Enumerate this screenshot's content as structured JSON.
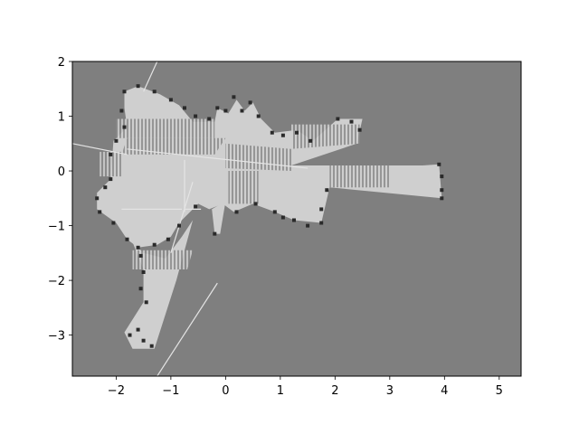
{
  "chart_data": {
    "type": "heatmap",
    "title": "",
    "xlabel": "",
    "ylabel": "",
    "xlim": [
      -2.8,
      5.4
    ],
    "ylim": [
      -3.75,
      2.0
    ],
    "x_ticks": [
      -2,
      -1,
      0,
      1,
      2,
      3,
      4,
      5
    ],
    "y_ticks": [
      -3,
      -2,
      -1,
      0,
      1,
      2
    ],
    "x_tick_labels": [
      "−2",
      "−1",
      "0",
      "1",
      "2",
      "3",
      "4",
      "5"
    ],
    "y_tick_labels": [
      "−3",
      "−2",
      "−1",
      "0",
      "1",
      "2"
    ],
    "grid": false,
    "colors": {
      "unknown": "#7f7f7f",
      "free": "#cfcfcf",
      "occupied": "#2a2a2a",
      "hatch_dark": "#7a7a7a",
      "spoke": "#e4e4e4"
    },
    "free_regions": [
      [
        [
          -1.85,
          1.45
        ],
        [
          -1.6,
          1.55
        ],
        [
          -1.2,
          1.4
        ],
        [
          -0.85,
          1.2
        ],
        [
          -0.6,
          0.9
        ],
        [
          -0.2,
          0.9
        ],
        [
          -0.15,
          1.15
        ],
        [
          0.05,
          1.05
        ],
        [
          0.2,
          1.3
        ],
        [
          0.35,
          1.1
        ],
        [
          0.5,
          1.25
        ],
        [
          0.65,
          0.95
        ],
        [
          0.9,
          0.7
        ],
        [
          1.3,
          0.75
        ],
        [
          1.6,
          0.55
        ],
        [
          2.05,
          0.95
        ],
        [
          2.5,
          0.95
        ],
        [
          2.4,
          0.5
        ],
        [
          1.2,
          0.1
        ],
        [
          3.6,
          0.1
        ],
        [
          3.9,
          0.12
        ],
        [
          3.95,
          -0.5
        ],
        [
          1.9,
          -0.3
        ],
        [
          1.75,
          -0.95
        ],
        [
          1.25,
          -0.9
        ],
        [
          0.9,
          -0.75
        ],
        [
          0.5,
          -0.6
        ],
        [
          0.15,
          -0.75
        ],
        [
          -0.05,
          -0.6
        ],
        [
          -0.3,
          -0.7
        ],
        [
          -0.5,
          -0.6
        ],
        [
          -0.85,
          -0.95
        ],
        [
          -1.0,
          -1.2
        ],
        [
          -1.25,
          -1.35
        ],
        [
          -1.6,
          -1.4
        ],
        [
          -1.8,
          -1.25
        ],
        [
          -2.0,
          -0.95
        ],
        [
          -2.35,
          -0.7
        ],
        [
          -2.35,
          -0.4
        ],
        [
          -2.1,
          -0.15
        ],
        [
          -2.05,
          0.55
        ],
        [
          -1.8,
          0.8
        ],
        [
          -1.85,
          1.15
        ]
      ],
      [
        [
          -1.7,
          -1.3
        ],
        [
          -1.5,
          -1.5
        ],
        [
          -1.1,
          -1.6
        ],
        [
          -0.8,
          -1.2
        ],
        [
          -0.6,
          -0.9
        ],
        [
          -0.9,
          -2.0
        ],
        [
          -1.3,
          -3.25
        ],
        [
          -1.7,
          -3.25
        ],
        [
          -1.85,
          -2.95
        ],
        [
          -1.5,
          -2.4
        ],
        [
          -1.5,
          -1.8
        ]
      ],
      [
        [
          -0.25,
          -0.7
        ],
        [
          0.0,
          -0.55
        ],
        [
          -0.1,
          -1.15
        ],
        [
          -0.2,
          -1.15
        ]
      ]
    ],
    "hatched_regions": [
      [
        [
          -2.0,
          0.95
        ],
        [
          -0.2,
          0.95
        ],
        [
          -0.2,
          0.6
        ],
        [
          -2.0,
          0.6
        ]
      ],
      [
        [
          -1.8,
          0.6
        ],
        [
          0.0,
          0.6
        ],
        [
          -0.2,
          0.3
        ],
        [
          -1.9,
          0.3
        ]
      ],
      [
        [
          0.0,
          0.5
        ],
        [
          1.2,
          0.4
        ],
        [
          1.2,
          0.0
        ],
        [
          0.0,
          0.05
        ]
      ],
      [
        [
          1.2,
          0.85
        ],
        [
          2.45,
          0.85
        ],
        [
          2.45,
          0.5
        ],
        [
          1.2,
          0.4
        ]
      ],
      [
        [
          1.9,
          0.1
        ],
        [
          3.0,
          0.1
        ],
        [
          3.0,
          -0.3
        ],
        [
          1.9,
          -0.3
        ]
      ],
      [
        [
          0.05,
          0.0
        ],
        [
          0.6,
          0.0
        ],
        [
          0.6,
          -0.6
        ],
        [
          0.05,
          -0.6
        ]
      ],
      [
        [
          -2.3,
          0.35
        ],
        [
          -1.9,
          0.35
        ],
        [
          -1.9,
          -0.1
        ],
        [
          -2.3,
          -0.1
        ]
      ],
      [
        [
          -1.7,
          -1.45
        ],
        [
          -0.6,
          -1.45
        ],
        [
          -0.7,
          -1.8
        ],
        [
          -1.7,
          -1.8
        ]
      ]
    ],
    "obstacle_points": [
      [
        -1.85,
        1.45
      ],
      [
        -1.6,
        1.55
      ],
      [
        -1.3,
        1.45
      ],
      [
        -1.0,
        1.3
      ],
      [
        -0.75,
        1.15
      ],
      [
        -0.55,
        1.0
      ],
      [
        -0.3,
        0.95
      ],
      [
        -0.15,
        1.15
      ],
      [
        0.0,
        1.1
      ],
      [
        0.15,
        1.35
      ],
      [
        0.3,
        1.1
      ],
      [
        0.45,
        1.25
      ],
      [
        0.6,
        1.0
      ],
      [
        0.85,
        0.7
      ],
      [
        1.05,
        0.65
      ],
      [
        1.3,
        0.7
      ],
      [
        1.55,
        0.55
      ],
      [
        2.05,
        0.95
      ],
      [
        2.3,
        0.9
      ],
      [
        2.45,
        0.75
      ],
      [
        3.9,
        0.12
      ],
      [
        3.95,
        -0.1
      ],
      [
        3.95,
        -0.35
      ],
      [
        3.95,
        -0.5
      ],
      [
        1.85,
        -0.35
      ],
      [
        1.75,
        -0.7
      ],
      [
        1.75,
        -0.95
      ],
      [
        1.5,
        -1.0
      ],
      [
        1.25,
        -0.9
      ],
      [
        1.05,
        -0.85
      ],
      [
        0.9,
        -0.75
      ],
      [
        0.55,
        -0.6
      ],
      [
        0.2,
        -0.75
      ],
      [
        -0.2,
        -1.15
      ],
      [
        -0.55,
        -0.65
      ],
      [
        -0.85,
        -1.0
      ],
      [
        -1.05,
        -1.25
      ],
      [
        -1.3,
        -1.35
      ],
      [
        -1.6,
        -1.4
      ],
      [
        -1.8,
        -1.25
      ],
      [
        -2.05,
        -0.95
      ],
      [
        -2.3,
        -0.75
      ],
      [
        -2.35,
        -0.5
      ],
      [
        -2.2,
        -0.3
      ],
      [
        -2.1,
        -0.15
      ],
      [
        -2.1,
        0.3
      ],
      [
        -2.0,
        0.55
      ],
      [
        -1.85,
        0.8
      ],
      [
        -1.9,
        1.1
      ],
      [
        -1.55,
        -1.55
      ],
      [
        -1.5,
        -1.85
      ],
      [
        -1.55,
        -2.15
      ],
      [
        -1.45,
        -2.4
      ],
      [
        -1.6,
        -2.9
      ],
      [
        -1.75,
        -3.0
      ],
      [
        -1.5,
        -3.1
      ],
      [
        -1.35,
        -3.2
      ]
    ],
    "spokes": [
      [
        [
          -1.8,
          0.4
        ],
        [
          1.5,
          0.05
        ]
      ],
      [
        [
          -2.8,
          0.5
        ],
        [
          -1.8,
          0.3
        ]
      ],
      [
        [
          -1.5,
          1.45
        ],
        [
          -1.25,
          2.0
        ]
      ],
      [
        [
          -0.6,
          -0.2
        ],
        [
          -1.0,
          -1.5
        ]
      ],
      [
        [
          -0.15,
          -2.05
        ],
        [
          -1.25,
          -3.75
        ]
      ],
      [
        [
          -0.75,
          0.2
        ],
        [
          -0.75,
          -0.75
        ]
      ],
      [
        [
          -0.8,
          -0.7
        ],
        [
          -1.9,
          -0.7
        ]
      ],
      [
        [
          -0.75,
          -0.7
        ],
        [
          -0.45,
          -0.7
        ]
      ]
    ]
  }
}
